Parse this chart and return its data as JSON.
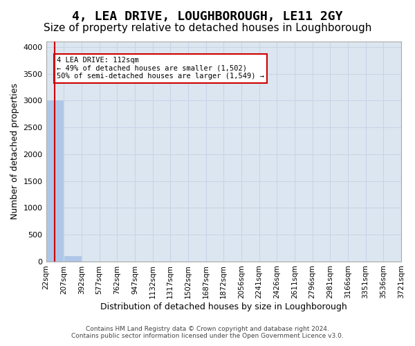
{
  "title": "4, LEA DRIVE, LOUGHBOROUGH, LE11 2GY",
  "subtitle": "Size of property relative to detached houses in Loughborough",
  "xlabel": "Distribution of detached houses by size in Loughborough",
  "ylabel": "Number of detached properties",
  "bin_labels": [
    "22sqm",
    "207sqm",
    "392sqm",
    "577sqm",
    "762sqm",
    "947sqm",
    "1132sqm",
    "1317sqm",
    "1502sqm",
    "1687sqm",
    "1872sqm",
    "2056sqm",
    "2241sqm",
    "2426sqm",
    "2611sqm",
    "2796sqm",
    "2981sqm",
    "3166sqm",
    "3351sqm",
    "3536sqm",
    "3721sqm"
  ],
  "bar_heights": [
    3000,
    100,
    0,
    0,
    0,
    0,
    0,
    0,
    0,
    0,
    0,
    0,
    0,
    0,
    0,
    0,
    0,
    0,
    0,
    0
  ],
  "bar_color": "#aec6e8",
  "bar_edge_color": "#aec6e8",
  "ylim": [
    0,
    4100
  ],
  "yticks": [
    0,
    500,
    1000,
    1500,
    2000,
    2500,
    3000,
    3500,
    4000
  ],
  "red_line_color": "#cc0000",
  "annotation_line1": "4 LEA DRIVE: 112sqm",
  "annotation_line2": "← 49% of detached houses are smaller (1,502)",
  "annotation_line3": "50% of semi-detached houses are larger (1,549) →",
  "annotation_box_color": "#ffffff",
  "annotation_box_edge_color": "#cc0000",
  "grid_color": "#c8d4e8",
  "background_color": "#dce6f0",
  "footer_line1": "Contains HM Land Registry data © Crown copyright and database right 2024.",
  "footer_line2": "Contains public sector information licensed under the Open Government Licence v3.0.",
  "title_fontsize": 13,
  "subtitle_fontsize": 11,
  "label_fontsize": 9,
  "tick_fontsize": 7.5
}
